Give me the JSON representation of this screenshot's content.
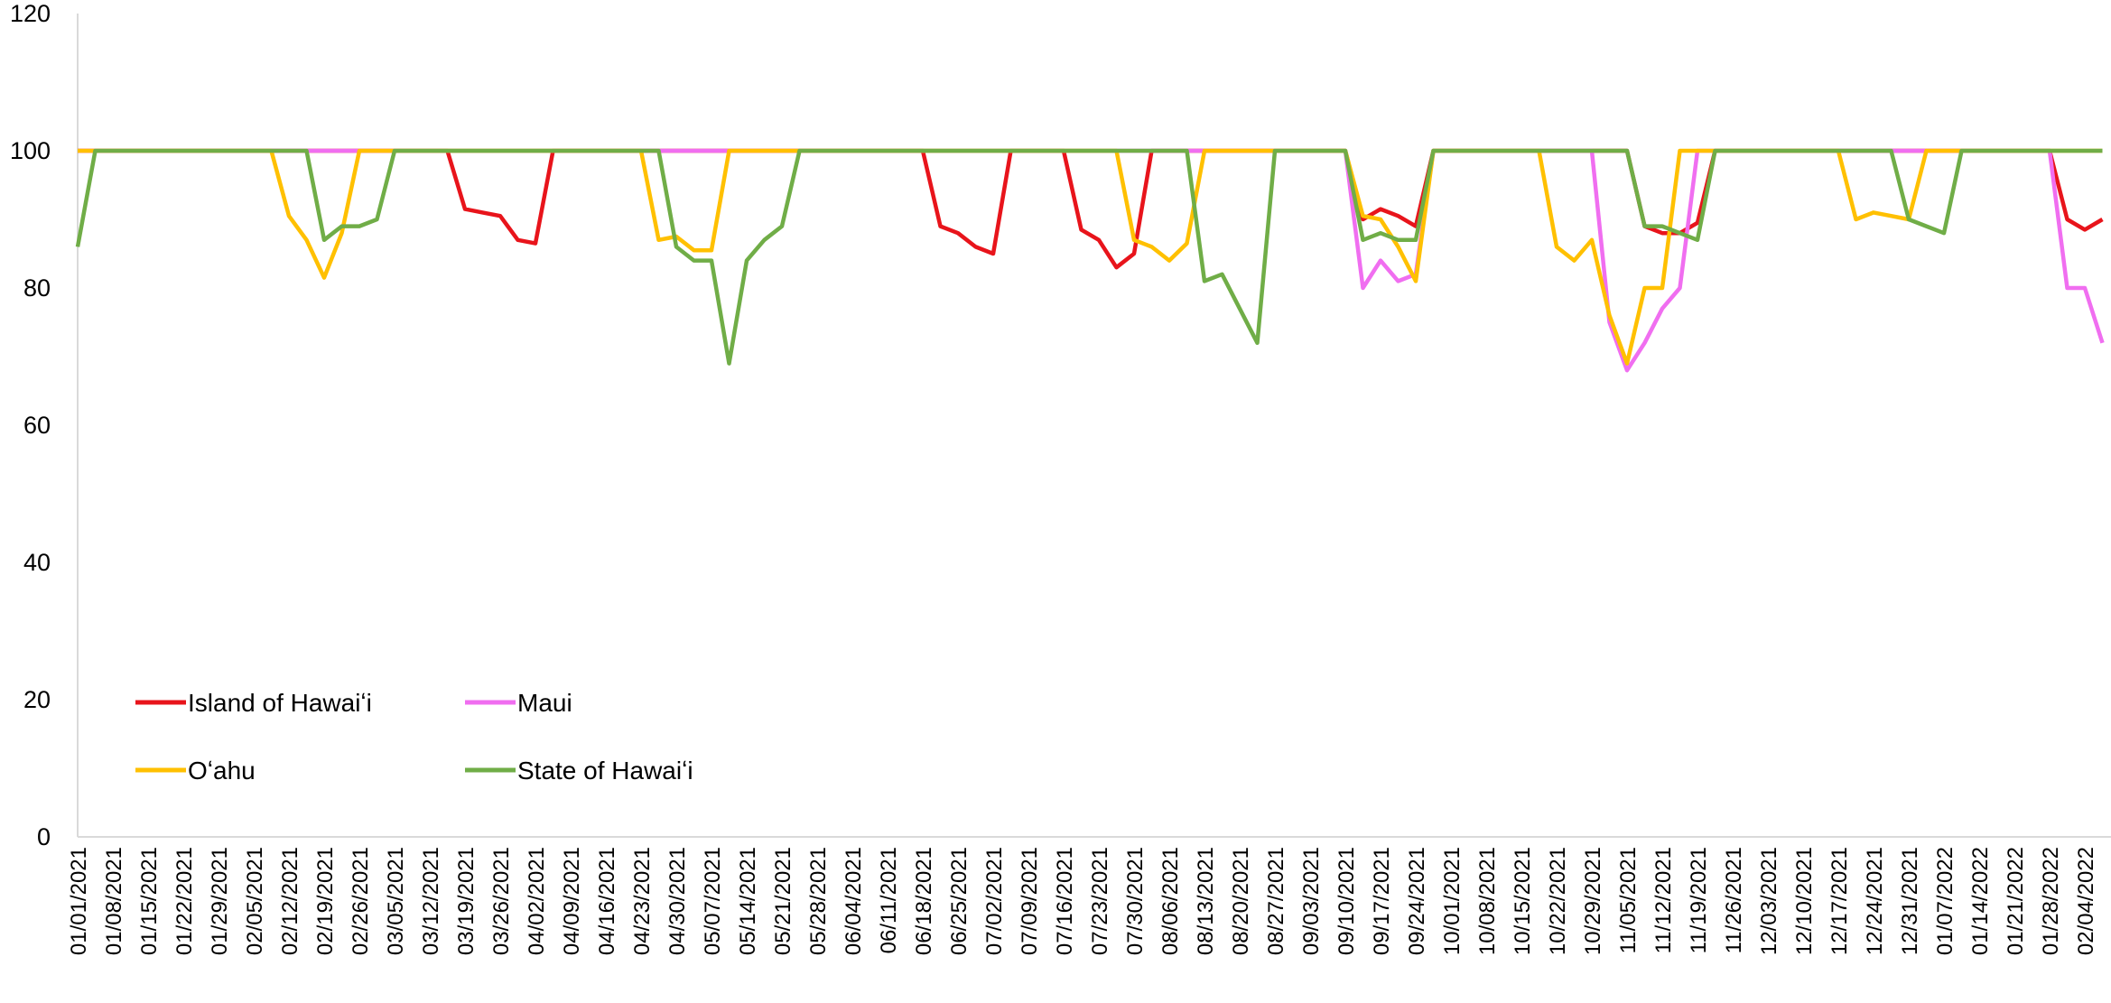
{
  "chart_data": {
    "type": "line",
    "categories": [
      "01/01/2021",
      null,
      "01/08/2021",
      null,
      "01/15/2021",
      null,
      "01/22/2021",
      null,
      "01/29/2021",
      null,
      "02/05/2021",
      null,
      "02/12/2021",
      null,
      "02/19/2021",
      null,
      "02/26/2021",
      null,
      "03/05/2021",
      null,
      "03/12/2021",
      null,
      "03/19/2021",
      null,
      "03/26/2021",
      null,
      "04/02/2021",
      null,
      "04/09/2021",
      null,
      "04/16/2021",
      null,
      "04/23/2021",
      null,
      "04/30/2021",
      null,
      "05/07/2021",
      null,
      "05/14/2021",
      null,
      "05/21/2021",
      null,
      "05/28/2021",
      null,
      "06/04/2021",
      null,
      "06/11/2021",
      null,
      "06/18/2021",
      null,
      "06/25/2021",
      null,
      "07/02/2021",
      null,
      "07/09/2021",
      null,
      "07/16/2021",
      null,
      "07/23/2021",
      null,
      "07/30/2021",
      null,
      "08/06/2021",
      null,
      "08/13/2021",
      null,
      "08/20/2021",
      null,
      "08/27/2021",
      null,
      "09/03/2021",
      null,
      "09/10/2021",
      null,
      "09/17/2021",
      null,
      "09/24/2021",
      null,
      "10/01/2021",
      null,
      "10/08/2021",
      null,
      "10/15/2021",
      null,
      "10/22/2021",
      null,
      "10/29/2021",
      null,
      "11/05/2021",
      null,
      "11/12/2021",
      null,
      "11/19/2021",
      null,
      "11/26/2021",
      null,
      "12/03/2021",
      null,
      "12/10/2021",
      null,
      "12/17/2021",
      null,
      "12/24/2021",
      null,
      "12/31/2021",
      null,
      "01/07/2022",
      null,
      "01/14/2022",
      null,
      "01/21/2022",
      null,
      "01/28/2022",
      null,
      "02/04/2022",
      null
    ],
    "series": [
      {
        "name": "Island of Hawaiʻi",
        "color": "#e8141b",
        "values": [
          100,
          100,
          100,
          100,
          100,
          100,
          100,
          100,
          100,
          100,
          100,
          100,
          100,
          100,
          100,
          100,
          100,
          100,
          100,
          100,
          100,
          100,
          91.5,
          91,
          90.5,
          87,
          86.5,
          100,
          100,
          100,
          100,
          100,
          100,
          100,
          100,
          100,
          100,
          100,
          100,
          100,
          100,
          100,
          100,
          100,
          100,
          100,
          100,
          100,
          100,
          89,
          88,
          86,
          85,
          100,
          100,
          100,
          100,
          88.5,
          87,
          83,
          85,
          100,
          100,
          100,
          100,
          100,
          100,
          100,
          100,
          100,
          100,
          100,
          100,
          90,
          91.5,
          90.5,
          89,
          100,
          100,
          100,
          100,
          100,
          100,
          100,
          100,
          100,
          100,
          100,
          100,
          89,
          88,
          88,
          89.5,
          100,
          100,
          100,
          100,
          100,
          100,
          100,
          100,
          100,
          100,
          100,
          100,
          100,
          100,
          100,
          100,
          100,
          100,
          100,
          100,
          90,
          88.5,
          90
        ]
      },
      {
        "name": "Maui",
        "color": "#f06ef0",
        "values": [
          100,
          100,
          100,
          100,
          100,
          100,
          100,
          100,
          100,
          100,
          100,
          100,
          100,
          100,
          100,
          100,
          100,
          100,
          100,
          100,
          100,
          100,
          100,
          100,
          100,
          100,
          100,
          100,
          100,
          100,
          100,
          100,
          100,
          100,
          100,
          100,
          100,
          100,
          100,
          100,
          100,
          100,
          100,
          100,
          100,
          100,
          100,
          100,
          100,
          100,
          100,
          100,
          100,
          100,
          100,
          100,
          100,
          100,
          100,
          100,
          100,
          100,
          100,
          100,
          100,
          100,
          100,
          100,
          100,
          100,
          100,
          100,
          100,
          80,
          84,
          81,
          82,
          100,
          100,
          100,
          100,
          100,
          100,
          100,
          100,
          100,
          100,
          75,
          68,
          72,
          77,
          80,
          100,
          100,
          100,
          100,
          100,
          100,
          100,
          100,
          100,
          100,
          100,
          100,
          100,
          100,
          100,
          100,
          100,
          100,
          100,
          100,
          100,
          80,
          80,
          72
        ]
      },
      {
        "name": "Oʻahu",
        "color": "#ffc000",
        "values": [
          100,
          100,
          100,
          100,
          100,
          100,
          100,
          100,
          100,
          100,
          100,
          100,
          90.5,
          87,
          81.5,
          88,
          100,
          100,
          100,
          100,
          100,
          100,
          100,
          100,
          100,
          100,
          100,
          100,
          100,
          100,
          100,
          100,
          100,
          87,
          87.5,
          85.5,
          85.5,
          100,
          100,
          100,
          100,
          100,
          100,
          100,
          100,
          100,
          100,
          100,
          100,
          100,
          100,
          100,
          100,
          100,
          100,
          100,
          100,
          100,
          100,
          100,
          87,
          86,
          84,
          86.5,
          100,
          100,
          100,
          100,
          100,
          100,
          100,
          100,
          100,
          90.5,
          90,
          86,
          81,
          100,
          100,
          100,
          100,
          100,
          100,
          100,
          86,
          84,
          87,
          76,
          69,
          80,
          80,
          100,
          100,
          100,
          100,
          100,
          100,
          100,
          100,
          100,
          100,
          90,
          91,
          90.5,
          90,
          100,
          100,
          100,
          100,
          100,
          100,
          100,
          100,
          100,
          100,
          100
        ]
      },
      {
        "name": "State of Hawaiʻi",
        "color": "#70ad47",
        "values": [
          86,
          100,
          100,
          100,
          100,
          100,
          100,
          100,
          100,
          100,
          100,
          100,
          100,
          100,
          87,
          89,
          89,
          90,
          100,
          100,
          100,
          100,
          100,
          100,
          100,
          100,
          100,
          100,
          100,
          100,
          100,
          100,
          100,
          100,
          86,
          84,
          84,
          69,
          84,
          87,
          89,
          100,
          100,
          100,
          100,
          100,
          100,
          100,
          100,
          100,
          100,
          100,
          100,
          100,
          100,
          100,
          100,
          100,
          100,
          100,
          100,
          100,
          100,
          100,
          81,
          82,
          77,
          72,
          100,
          100,
          100,
          100,
          100,
          87,
          88,
          87,
          87,
          100,
          100,
          100,
          100,
          100,
          100,
          100,
          100,
          100,
          100,
          100,
          100,
          89,
          89,
          88,
          87,
          100,
          100,
          100,
          100,
          100,
          100,
          100,
          100,
          100,
          100,
          100,
          90,
          89,
          88,
          100,
          100,
          100,
          100,
          100,
          100,
          100,
          100,
          100
        ]
      }
    ],
    "ylim": [
      0,
      120
    ],
    "yticks": [
      0,
      20,
      40,
      60,
      80,
      100,
      120
    ],
    "grid": false,
    "legend": "lower left"
  }
}
